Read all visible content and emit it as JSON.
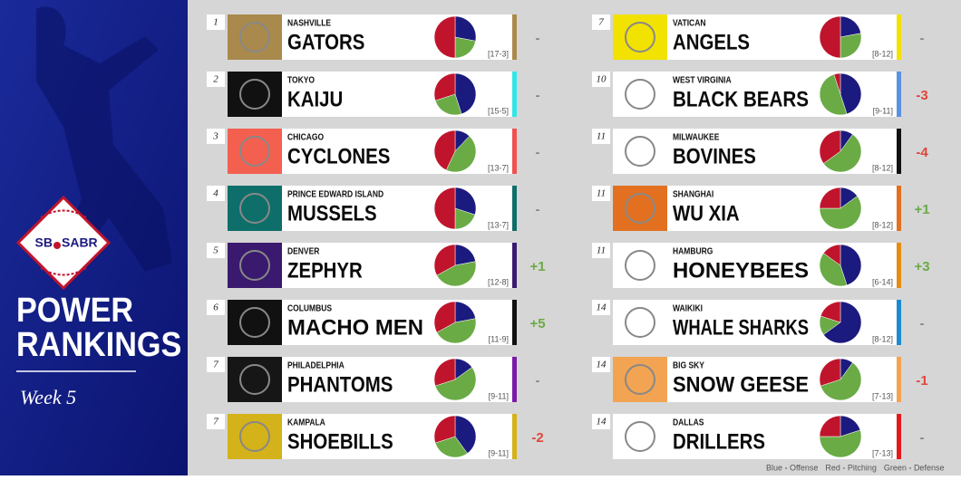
{
  "header": {
    "logo_left": "SB",
    "logo_right": "SABR",
    "title_line1": "POWER",
    "title_line2": "RANKINGS",
    "week": "Week 5"
  },
  "pie_colors": {
    "offense": "#1b1a7e",
    "defense": "#6aab45",
    "pitching": "#c0142c"
  },
  "legend": [
    {
      "color": "Blue",
      "meaning": "Offense"
    },
    {
      "color": "Red",
      "meaning": "Pitching"
    },
    {
      "color": "Green",
      "meaning": "Defense"
    }
  ],
  "teams": [
    {
      "rank": "1",
      "city": "NASHVILLE",
      "name": "GATORS",
      "record": "[17-3]",
      "change": "-",
      "accent": "#a98a4c",
      "logo_color": "#a98a4c",
      "pie": {
        "offense": 28,
        "defense": 22,
        "pitching": 50
      }
    },
    {
      "rank": "2",
      "city": "TOKYO",
      "name": "KAIJU",
      "record": "[15-5]",
      "change": "-",
      "accent": "#33e6e6",
      "logo_color": "#111111",
      "pie": {
        "offense": 45,
        "defense": 25,
        "pitching": 30
      }
    },
    {
      "rank": "3",
      "city": "CHICAGO",
      "name": "CYCLONES",
      "record": "[13-7]",
      "change": "-",
      "accent": "#f05050",
      "logo_color": "#f46050",
      "pie": {
        "offense": 12,
        "defense": 45,
        "pitching": 43
      }
    },
    {
      "rank": "4",
      "city": "PRINCE EDWARD ISLAND",
      "name": "MUSSELS",
      "record": "[13-7]",
      "change": "-",
      "accent": "#0e6e6a",
      "logo_color": "#0e6e6a",
      "pie": {
        "offense": 30,
        "defense": 20,
        "pitching": 50
      }
    },
    {
      "rank": "5",
      "city": "DENVER",
      "name": "ZEPHYR",
      "record": "[12-8]",
      "change": "+1",
      "accent": "#3a1a6e",
      "logo_color": "#3a1a6e",
      "pie": {
        "offense": 22,
        "defense": 45,
        "pitching": 33
      }
    },
    {
      "rank": "6",
      "city": "COLUMBUS",
      "name": "MACHO MEN",
      "record": "[11-9]",
      "change": "+5",
      "accent": "#111111",
      "logo_color": "#111111",
      "pie": {
        "offense": 22,
        "defense": 45,
        "pitching": 33
      }
    },
    {
      "rank": "7",
      "city": "PHILADELPHIA",
      "name": "PHANTOMS",
      "record": "[9-11]",
      "change": "-",
      "accent": "#7a1aa6",
      "logo_color": "#161616",
      "pie": {
        "offense": 15,
        "defense": 55,
        "pitching": 30
      }
    },
    {
      "rank": "7",
      "city": "KAMPALA",
      "name": "SHOEBILLS",
      "record": "[9-11]",
      "change": "-2",
      "accent": "#d4b21a",
      "logo_color": "#d4b21a",
      "pie": {
        "offense": 40,
        "defense": 30,
        "pitching": 30
      }
    },
    {
      "rank": "7",
      "city": "VATICAN",
      "name": "ANGELS",
      "record": "[8-12]",
      "change": "-",
      "accent": "#f2e200",
      "logo_color": "#f2e200",
      "pie": {
        "offense": 22,
        "defense": 28,
        "pitching": 50
      }
    },
    {
      "rank": "10",
      "city": "WEST VIRGINIA",
      "name": "BLACK BEARS",
      "record": "[9-11]",
      "change": "-3",
      "accent": "#5a92e2",
      "logo_color": "#ffffff",
      "pie": {
        "offense": 45,
        "defense": 50,
        "pitching": 5
      }
    },
    {
      "rank": "11",
      "city": "MILWAUKEE",
      "name": "BOVINES",
      "record": "[8-12]",
      "change": "-4",
      "accent": "#111111",
      "logo_color": "#ffffff",
      "pie": {
        "offense": 10,
        "defense": 55,
        "pitching": 35
      }
    },
    {
      "rank": "11",
      "city": "SHANGHAI",
      "name": "WU XIA",
      "record": "[8-12]",
      "change": "+1",
      "accent": "#e27020",
      "logo_color": "#e27020",
      "pie": {
        "offense": 15,
        "defense": 60,
        "pitching": 25
      }
    },
    {
      "rank": "11",
      "city": "HAMBURG",
      "name": "HONEYBEES",
      "record": "[6-14]",
      "change": "+3",
      "accent": "#e68c12",
      "logo_color": "#ffffff",
      "pie": {
        "offense": 45,
        "defense": 40,
        "pitching": 15
      }
    },
    {
      "rank": "14",
      "city": "WAIKIKI",
      "name": "WHALE SHARKS",
      "record": "[8-12]",
      "change": "-",
      "accent": "#1a8ad2",
      "logo_color": "#ffffff",
      "pie": {
        "offense": 65,
        "defense": 15,
        "pitching": 20
      }
    },
    {
      "rank": "14",
      "city": "BIG SKY",
      "name": "SNOW GEESE",
      "record": "[7-13]",
      "change": "-1",
      "accent": "#f2a452",
      "logo_color": "#f2a452",
      "pie": {
        "offense": 10,
        "defense": 60,
        "pitching": 30
      }
    },
    {
      "rank": "14",
      "city": "DALLAS",
      "name": "DRILLERS",
      "record": "[7-13]",
      "change": "-",
      "accent": "#e21a1a",
      "logo_color": "#ffffff",
      "pie": {
        "offense": 20,
        "defense": 55,
        "pitching": 25
      }
    }
  ]
}
